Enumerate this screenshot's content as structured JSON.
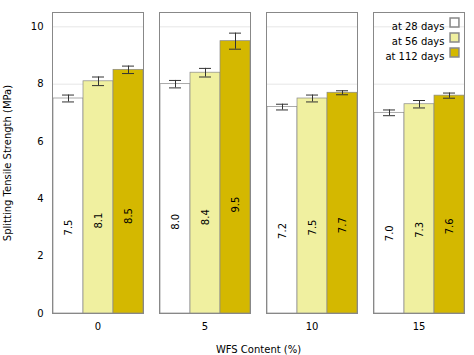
{
  "chart_data": {
    "type": "bar",
    "categories": [
      "0",
      "5",
      "10",
      "15"
    ],
    "series": [
      {
        "name": "at 28 days",
        "color": "#ffffff",
        "values": [
          7.5,
          8.0,
          7.2,
          7.0
        ],
        "errors": [
          0.12,
          0.13,
          0.1,
          0.1
        ],
        "value_labels": [
          "7.5",
          "8.0",
          "7.2",
          "7.0"
        ]
      },
      {
        "name": "at 56 days",
        "color": "#f0f0a0",
        "values": [
          8.1,
          8.4,
          7.5,
          7.3
        ],
        "errors": [
          0.15,
          0.15,
          0.12,
          0.13
        ],
        "value_labels": [
          "8.1",
          "8.4",
          "7.5",
          "7.3"
        ]
      },
      {
        "name": "at 112 days",
        "color": "#d4b800",
        "values": [
          8.5,
          9.5,
          7.7,
          7.6
        ],
        "errors": [
          0.13,
          0.28,
          0.07,
          0.09
        ],
        "value_labels": [
          "8.5",
          "9.5",
          "7.7",
          "7.6"
        ]
      }
    ],
    "xlabel": "WFS Content (%)",
    "ylabel": "Splitting Tensile Strength (MPa)",
    "ylim": [
      0,
      10.5
    ],
    "yticks": [
      0,
      2,
      4,
      6,
      8,
      10
    ],
    "grid": true,
    "legend": "upper right",
    "data_labels": true
  }
}
